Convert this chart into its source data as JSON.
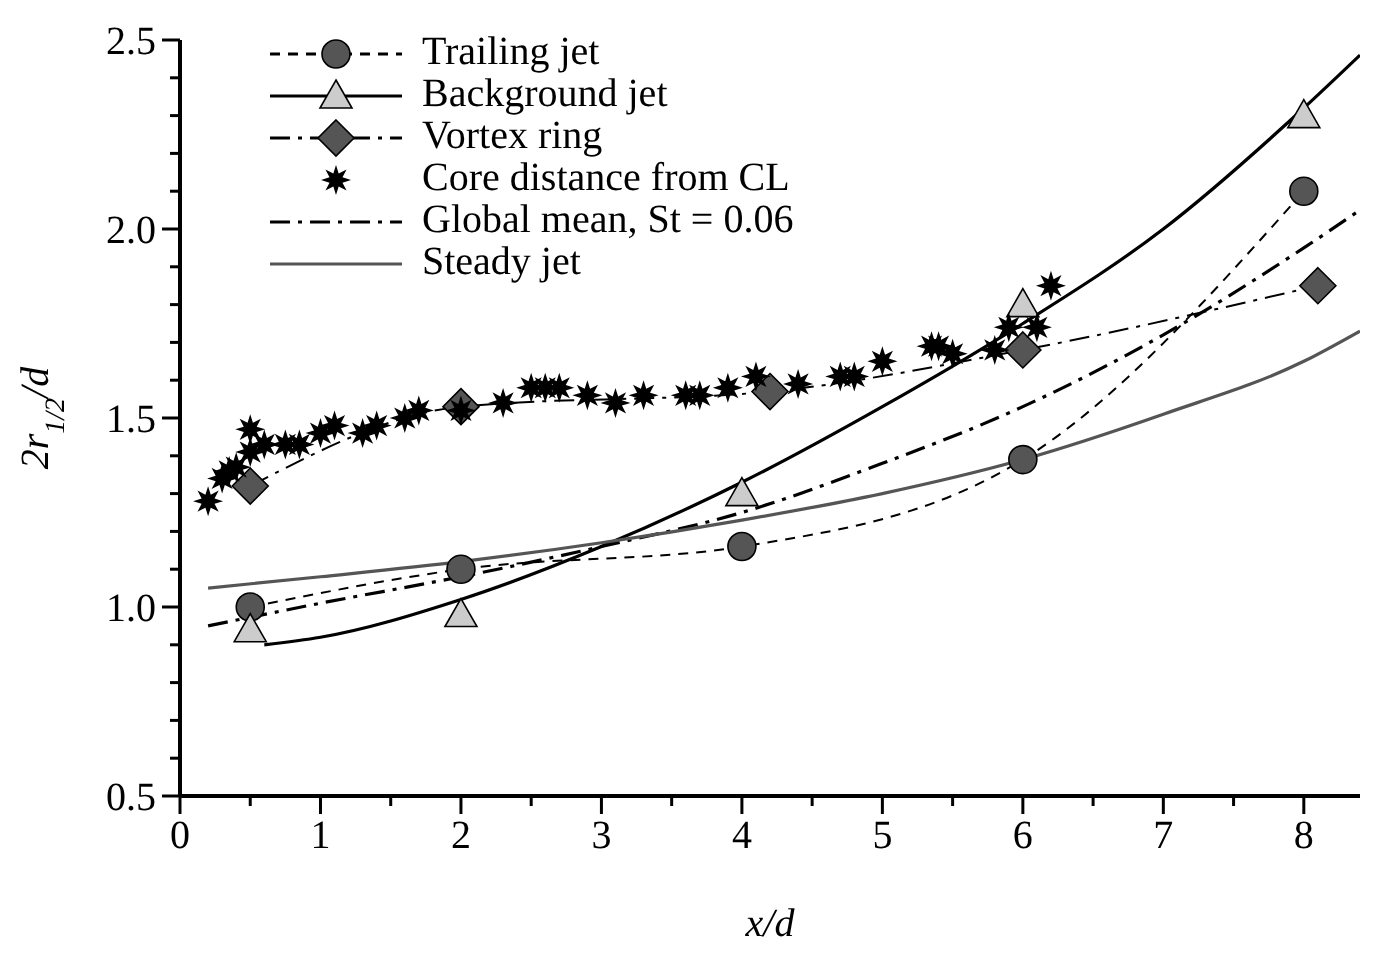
{
  "chart_data": {
    "type": "line",
    "xlabel": "x/d",
    "ylabel": "2r$_{1/2}$/d",
    "xlim": [
      0,
      8.4
    ],
    "ylim": [
      0.5,
      2.5
    ],
    "xticks": [
      0,
      {
        "value": 0.5,
        "label": null
      },
      1,
      {
        "value": 1.5,
        "label": null
      },
      2,
      {
        "value": 2.5,
        "label": null
      },
      3,
      {
        "value": 3.5,
        "label": null
      },
      4,
      {
        "value": 4.5,
        "label": null
      },
      5,
      {
        "value": 5.5,
        "label": null
      },
      6,
      {
        "value": 6.5,
        "label": null
      },
      7,
      {
        "value": 7.5,
        "label": null
      },
      8
    ],
    "yticks": [
      {
        "value": 0.5,
        "label": "0.5"
      },
      {
        "value": 0.6,
        "label": null
      },
      {
        "value": 0.7,
        "label": null
      },
      {
        "value": 0.8,
        "label": null
      },
      {
        "value": 0.9,
        "label": null
      },
      {
        "value": 1.0,
        "label": "1.0"
      },
      {
        "value": 1.1,
        "label": null
      },
      {
        "value": 1.2,
        "label": null
      },
      {
        "value": 1.3,
        "label": null
      },
      {
        "value": 1.4,
        "label": null
      },
      {
        "value": 1.5,
        "label": "1.5"
      },
      {
        "value": 1.6,
        "label": null
      },
      {
        "value": 1.7,
        "label": null
      },
      {
        "value": 1.8,
        "label": null
      },
      {
        "value": 1.9,
        "label": null
      },
      {
        "value": 2.0,
        "label": "2.0"
      },
      {
        "value": 2.1,
        "label": null
      },
      {
        "value": 2.2,
        "label": null
      },
      {
        "value": 2.3,
        "label": null
      },
      {
        "value": 2.4,
        "label": null
      },
      {
        "value": 2.5,
        "label": "2.5"
      }
    ],
    "grid": false,
    "legend": "top left",
    "series": [
      {
        "name": "Trailing jet",
        "color": "#555555",
        "line_style": "dashed",
        "marker": "circle",
        "x": [
          0.5,
          2,
          4,
          6,
          8
        ],
        "values": [
          1.0,
          1.1,
          1.16,
          1.39,
          2.1
        ]
      },
      {
        "name": "Background jet",
        "color": "#000000",
        "line_style": "solid",
        "marker": "none",
        "x": [
          0.6,
          1,
          2,
          3,
          4,
          5,
          6,
          7,
          8,
          8.4
        ],
        "values": [
          0.9,
          0.92,
          1.02,
          1.16,
          1.33,
          1.53,
          1.75,
          2.0,
          2.32,
          2.46
        ]
      },
      {
        "type": "scatter",
        "color": "#cccccc",
        "marker": "triangle",
        "x": [
          0.5,
          2,
          4,
          6,
          8
        ],
        "values": [
          0.94,
          0.98,
          1.3,
          1.8,
          2.3
        ]
      },
      {
        "name": "Vortex ring",
        "color": "#555555",
        "line_style": "dashdot",
        "marker": "diamond",
        "x": [
          0.5,
          2,
          4.2,
          6,
          8.1
        ],
        "values": [
          1.32,
          1.53,
          1.57,
          1.68,
          1.85
        ]
      },
      {
        "name": "Core distance from CL",
        "type": "scatter",
        "color": "#000000",
        "marker": "star",
        "x": [
          0.2,
          0.3,
          0.35,
          0.4,
          0.5,
          0.5,
          0.6,
          0.75,
          0.85,
          1.0,
          1.1,
          1.3,
          1.4,
          1.6,
          1.7,
          2.0,
          2.3,
          2.5,
          2.6,
          2.7,
          2.9,
          3.1,
          3.3,
          3.6,
          3.7,
          3.9,
          4.1,
          4.4,
          4.7,
          4.8,
          5.0,
          5.35,
          5.4,
          5.5,
          5.8,
          5.9,
          6.1,
          6.2
        ],
        "values": [
          1.28,
          1.34,
          1.36,
          1.37,
          1.41,
          1.47,
          1.43,
          1.43,
          1.43,
          1.46,
          1.48,
          1.46,
          1.48,
          1.5,
          1.52,
          1.52,
          1.54,
          1.58,
          1.58,
          1.58,
          1.56,
          1.54,
          1.56,
          1.56,
          1.56,
          1.58,
          1.61,
          1.59,
          1.61,
          1.61,
          1.65,
          1.69,
          1.69,
          1.67,
          1.68,
          1.74,
          1.74,
          1.85
        ]
      },
      {
        "name": "Global mean, St = 0.06",
        "color": "#000000",
        "line_style": "dashdot",
        "marker": "none",
        "x": [
          0.2,
          1,
          2,
          3,
          4,
          5,
          6,
          7,
          8,
          8.4
        ],
        "values": [
          0.95,
          1.01,
          1.08,
          1.16,
          1.25,
          1.38,
          1.53,
          1.72,
          1.95,
          2.05
        ]
      },
      {
        "name": "Steady jet",
        "color": "#555555",
        "line_style": "solid",
        "marker": "none",
        "x": [
          0.2,
          1,
          2,
          3,
          4,
          5,
          6,
          7,
          8,
          8.4
        ],
        "values": [
          1.05,
          1.08,
          1.12,
          1.17,
          1.23,
          1.3,
          1.39,
          1.51,
          1.65,
          1.73
        ]
      }
    ]
  }
}
